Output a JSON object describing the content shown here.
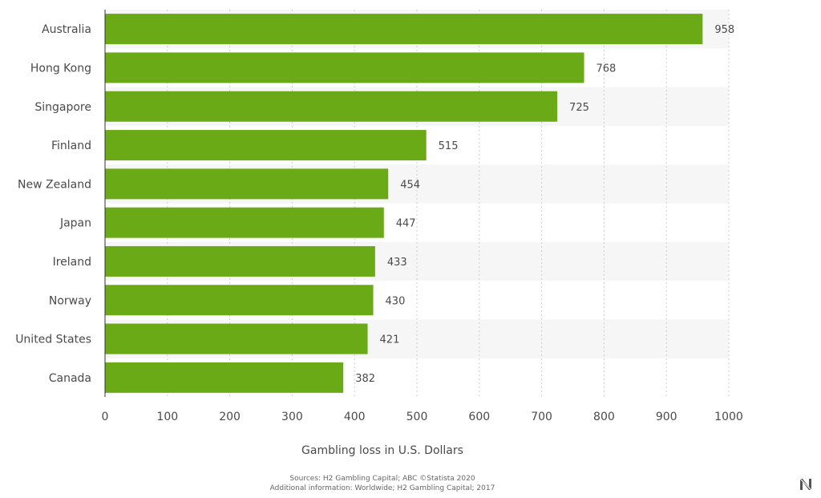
{
  "chart_data": {
    "type": "bar",
    "orientation": "horizontal",
    "categories": [
      "Australia",
      "Hong Kong",
      "Singapore",
      "Finland",
      "New Zealand",
      "Japan",
      "Ireland",
      "Norway",
      "United States",
      "Canada"
    ],
    "values": [
      958,
      768,
      725,
      515,
      454,
      447,
      433,
      430,
      421,
      382
    ],
    "xlabel": "Gambling loss in U.S. Dollars",
    "ylabel": "",
    "xlim": [
      0,
      1000
    ],
    "xticks": [
      0,
      100,
      200,
      300,
      400,
      500,
      600,
      700,
      800,
      900,
      1000
    ],
    "grid": true,
    "legend": "none"
  },
  "source": {
    "line1": "Sources: H2 Gambling Capital; ABC ©Statista 2020",
    "line2": "Additional information: Worldwide; H2 Gambling Capital; 2017"
  },
  "colors": {
    "bar": "#6aaa17",
    "band": "#f6f6f6",
    "grid": "#cccccc",
    "axis": "#333333"
  },
  "logo": {
    "icon": "logo-icon"
  }
}
